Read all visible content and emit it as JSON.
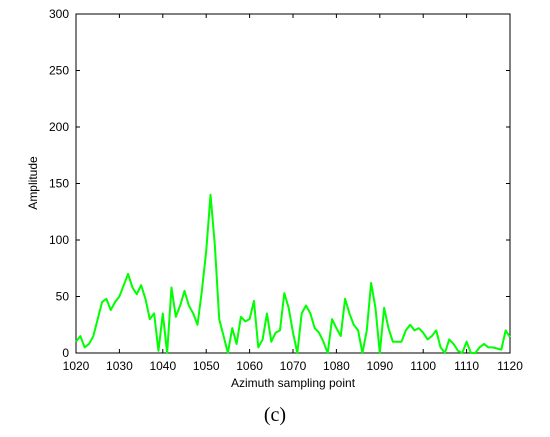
{
  "chart_data": {
    "type": "line",
    "title": "",
    "xlabel": "Azimuth sampling point",
    "ylabel": "Amplitude",
    "xlim": [
      1020,
      1120
    ],
    "ylim": [
      0,
      300
    ],
    "xticks": [
      1020,
      1030,
      1040,
      1050,
      1060,
      1070,
      1080,
      1090,
      1100,
      1110,
      1120
    ],
    "yticks": [
      0,
      50,
      100,
      150,
      200,
      250,
      300
    ],
    "grid": false,
    "series": [
      {
        "color": "#00ff00",
        "x": [
          1020,
          1021,
          1022,
          1023,
          1024,
          1025,
          1026,
          1027,
          1028,
          1029,
          1030,
          1031,
          1032,
          1033,
          1034,
          1035,
          1036,
          1037,
          1038,
          1039,
          1040,
          1041,
          1042,
          1043,
          1044,
          1045,
          1046,
          1047,
          1048,
          1049,
          1050,
          1051,
          1052,
          1053,
          1054,
          1055,
          1056,
          1057,
          1058,
          1059,
          1060,
          1061,
          1062,
          1063,
          1064,
          1065,
          1066,
          1067,
          1068,
          1069,
          1070,
          1071,
          1072,
          1073,
          1074,
          1075,
          1076,
          1077,
          1078,
          1079,
          1080,
          1081,
          1082,
          1083,
          1084,
          1085,
          1086,
          1087,
          1088,
          1089,
          1090,
          1091,
          1092,
          1093,
          1094,
          1095,
          1096,
          1097,
          1098,
          1099,
          1100,
          1101,
          1102,
          1103,
          1104,
          1105,
          1106,
          1107,
          1108,
          1109,
          1110,
          1111,
          1112,
          1113,
          1114,
          1115,
          1116,
          1117,
          1118,
          1119,
          1120
        ],
        "y": [
          10,
          15,
          5,
          8,
          15,
          30,
          45,
          48,
          38,
          45,
          50,
          60,
          70,
          58,
          52,
          60,
          48,
          30,
          35,
          2,
          35,
          0,
          58,
          32,
          42,
          55,
          42,
          35,
          25,
          55,
          90,
          140,
          95,
          30,
          15,
          0,
          22,
          8,
          32,
          28,
          30,
          46,
          5,
          12,
          35,
          10,
          18,
          20,
          53,
          40,
          18,
          0,
          35,
          42,
          35,
          22,
          18,
          10,
          0,
          30,
          22,
          15,
          48,
          35,
          25,
          20,
          0,
          20,
          62,
          40,
          0,
          40,
          22,
          10,
          10,
          10,
          20,
          25,
          20,
          22,
          18,
          12,
          15,
          20,
          5,
          0,
          12,
          8,
          2,
          0,
          10,
          0,
          0,
          5,
          8,
          5,
          5,
          4,
          3,
          20,
          14
        ]
      }
    ]
  },
  "caption": "(c)"
}
